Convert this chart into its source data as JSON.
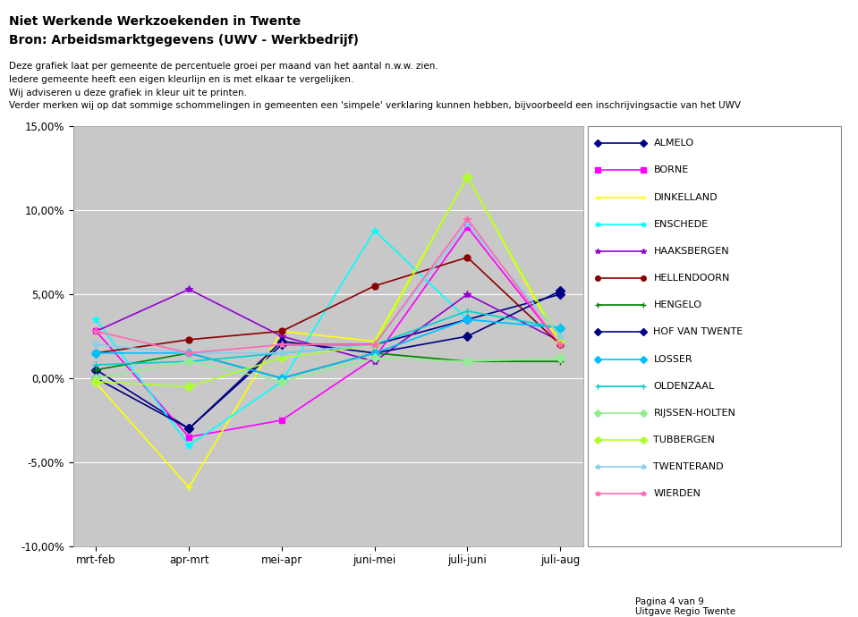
{
  "title1": "Niet Werkende Werkzoekenden in Twente",
  "title2": "Bron: Arbeidsmarktgegevens (UWV - Werkbedrijf)",
  "subtitle_lines": [
    "Deze grafiek laat per gemeente de percentuele groei per maand van het aantal n.w.w. zien.",
    "Iedere gemeente heeft een eigen kleurlijn en is met elkaar te vergelijken.",
    "Wij adviseren u deze grafiek in kleur uit te printen.",
    "Verder merken wij op dat sommige schommelingen in gemeenten een 'simpele' verklaring kunnen hebben, bijvoorbeeld een inschrijvingsactie van het UWV"
  ],
  "footer_left": "Pagina 4 van 9",
  "footer_right": "Uitgave Regio Twente",
  "x_labels": [
    "mrt-feb",
    "apr-mrt",
    "mei-apr",
    "juni-mei",
    "juli-juni",
    "juli-aug"
  ],
  "ylim": [
    -10.0,
    15.0
  ],
  "yticks": [
    -10.0,
    -5.0,
    0.0,
    5.0,
    10.0,
    15.0
  ],
  "series": {
    "ALMELO": {
      "color": "#00008B",
      "marker": "D",
      "lw": 1.2,
      "ms": 5,
      "values": [
        0.5,
        -3.0,
        2.0,
        2.0,
        3.5,
        5.0
      ]
    },
    "BORNE": {
      "color": "#FF00FF",
      "marker": "s",
      "lw": 1.2,
      "ms": 5,
      "values": [
        2.8,
        -3.5,
        -2.5,
        1.2,
        9.0,
        2.0
      ]
    },
    "DINKELLAND": {
      "color": "#FFFF00",
      "marker": "+",
      "lw": 1.2,
      "ms": 6,
      "values": [
        -0.3,
        -6.5,
        2.8,
        2.2,
        12.0,
        2.0
      ]
    },
    "ENSCHEDE": {
      "color": "#00FFFF",
      "marker": "*",
      "lw": 1.2,
      "ms": 6,
      "values": [
        3.5,
        -4.0,
        -0.2,
        8.8,
        3.5,
        3.0
      ]
    },
    "HAAKSBERGEN": {
      "color": "#9400D3",
      "marker": "*",
      "lw": 1.2,
      "ms": 6,
      "values": [
        2.8,
        5.3,
        2.5,
        1.0,
        5.0,
        2.2
      ]
    },
    "HELLENDOORN": {
      "color": "#8B0000",
      "marker": "o",
      "lw": 1.2,
      "ms": 5,
      "values": [
        1.5,
        2.3,
        2.8,
        5.5,
        7.2,
        2.0
      ]
    },
    "HENGELO": {
      "color": "#008000",
      "marker": "+",
      "lw": 1.2,
      "ms": 6,
      "values": [
        0.5,
        1.5,
        0.0,
        1.5,
        1.0,
        1.0
      ]
    },
    "HOF VAN TWENTE": {
      "color": "#000080",
      "marker": "D",
      "lw": 1.2,
      "ms": 5,
      "values": [
        0.0,
        -3.0,
        2.2,
        1.5,
        2.5,
        5.2
      ]
    },
    "LOSSER": {
      "color": "#00BFFF",
      "marker": "D",
      "lw": 1.2,
      "ms": 5,
      "values": [
        1.5,
        1.5,
        0.0,
        1.5,
        3.5,
        3.0
      ]
    },
    "OLDENZAAL": {
      "color": "#00CED1",
      "marker": "+",
      "lw": 1.2,
      "ms": 6,
      "values": [
        0.8,
        1.0,
        1.5,
        2.0,
        4.0,
        3.0
      ]
    },
    "RIJSSEN-HOLTEN": {
      "color": "#90EE90",
      "marker": "D",
      "lw": 1.2,
      "ms": 5,
      "values": [
        0.0,
        1.0,
        -0.2,
        1.2,
        1.0,
        1.2
      ]
    },
    "TUBBERGEN": {
      "color": "#ADFF2F",
      "marker": "D",
      "lw": 1.2,
      "ms": 5,
      "values": [
        -0.2,
        -0.5,
        1.2,
        2.0,
        12.0,
        2.2
      ]
    },
    "TWENTERAND": {
      "color": "#87CEEB",
      "marker": "*",
      "lw": 1.2,
      "ms": 6,
      "values": [
        2.0,
        1.5,
        1.5,
        2.0,
        9.2,
        2.5
      ]
    },
    "WIERDEN": {
      "color": "#FF69B4",
      "marker": "*",
      "lw": 1.2,
      "ms": 6,
      "values": [
        2.8,
        1.5,
        2.0,
        2.0,
        9.5,
        2.0
      ]
    }
  }
}
